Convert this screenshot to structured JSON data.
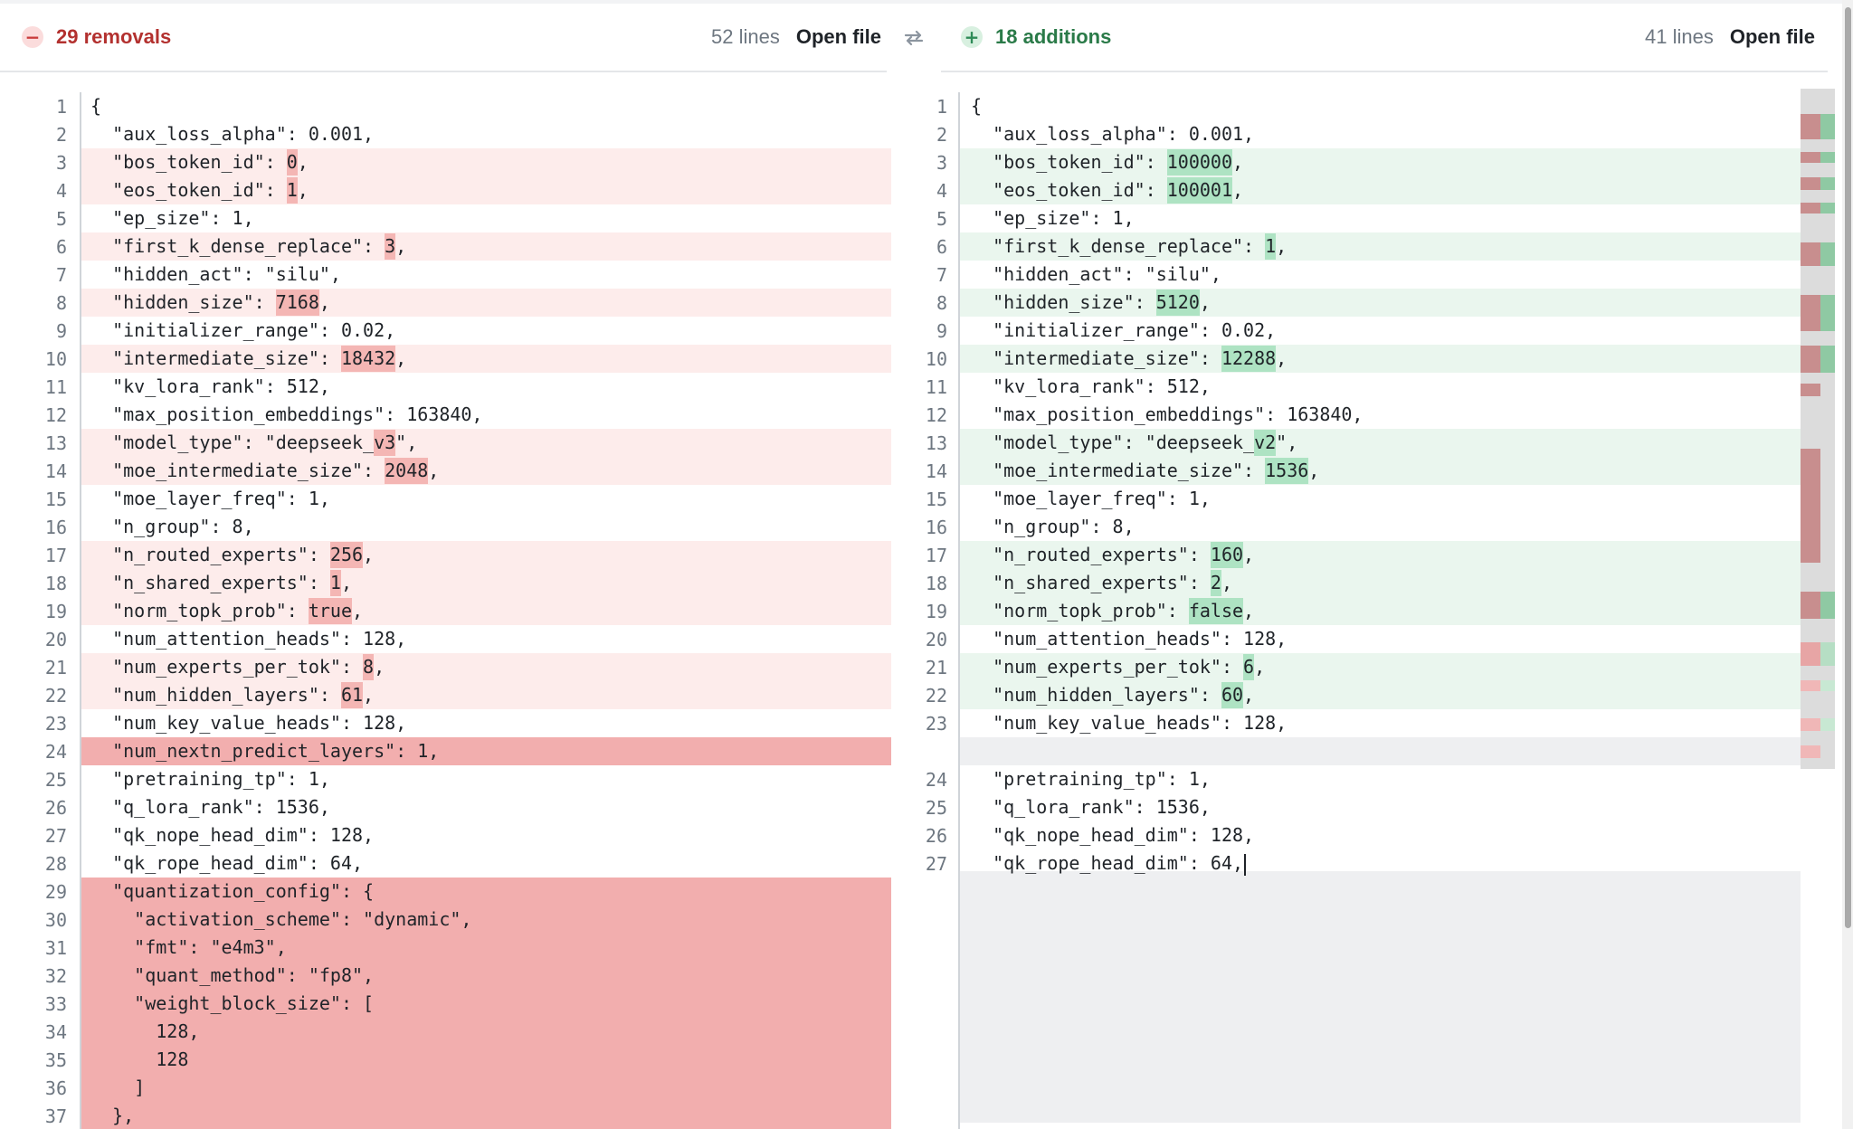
{
  "left_header": {
    "badge_icon": "minus-circle-icon",
    "label": "29 removals",
    "lines": "52 lines",
    "open_file": "Open file"
  },
  "right_header": {
    "badge_icon": "plus-circle-icon",
    "label": "18 additions",
    "lines": "41 lines",
    "open_file": "Open file"
  },
  "swap_icon": "swap-arrows-icon",
  "colors": {
    "removal": "#b3312f",
    "addition": "#2a7a48",
    "removed_line_bg": "#fdeceb",
    "removed_block_bg": "#f2aeae",
    "added_line_bg": "#eaf6ee",
    "added_token_bg": "#aee3c3"
  },
  "left_lines": [
    {
      "n": "1",
      "s": "normal",
      "p": [
        "{"
      ]
    },
    {
      "n": "2",
      "s": "normal",
      "p": [
        "  \"aux_loss_alpha\": 0.001,"
      ]
    },
    {
      "n": "3",
      "s": "mod",
      "p": [
        "  \"bos_token_id\": ",
        "0",
        ","
      ]
    },
    {
      "n": "4",
      "s": "mod",
      "p": [
        "  \"eos_token_id\": ",
        "1",
        ","
      ]
    },
    {
      "n": "5",
      "s": "normal",
      "p": [
        "  \"ep_size\": 1,"
      ]
    },
    {
      "n": "6",
      "s": "mod",
      "p": [
        "  \"first_k_dense_replace\": ",
        "3",
        ","
      ]
    },
    {
      "n": "7",
      "s": "normal",
      "p": [
        "  \"hidden_act\": \"silu\","
      ]
    },
    {
      "n": "8",
      "s": "mod",
      "p": [
        "  \"hidden_size\": ",
        "7168",
        ","
      ]
    },
    {
      "n": "9",
      "s": "normal",
      "p": [
        "  \"initializer_range\": 0.02,"
      ]
    },
    {
      "n": "10",
      "s": "mod",
      "p": [
        "  \"intermediate_size\": ",
        "18432",
        ","
      ]
    },
    {
      "n": "11",
      "s": "normal",
      "p": [
        "  \"kv_lora_rank\": 512,"
      ]
    },
    {
      "n": "12",
      "s": "normal",
      "p": [
        "  \"max_position_embeddings\": 163840,"
      ]
    },
    {
      "n": "13",
      "s": "mod",
      "p": [
        "  \"model_type\": \"deepseek_",
        "v3",
        "\","
      ]
    },
    {
      "n": "14",
      "s": "mod",
      "p": [
        "  \"moe_intermediate_size\": ",
        "2048",
        ","
      ]
    },
    {
      "n": "15",
      "s": "normal",
      "p": [
        "  \"moe_layer_freq\": 1,"
      ]
    },
    {
      "n": "16",
      "s": "normal",
      "p": [
        "  \"n_group\": 8,"
      ]
    },
    {
      "n": "17",
      "s": "mod",
      "p": [
        "  \"n_routed_experts\": ",
        "256",
        ","
      ]
    },
    {
      "n": "18",
      "s": "mod",
      "p": [
        "  \"n_shared_experts\": ",
        "1",
        ","
      ]
    },
    {
      "n": "19",
      "s": "mod",
      "p": [
        "  \"norm_topk_prob\": ",
        "true",
        ","
      ]
    },
    {
      "n": "20",
      "s": "normal",
      "p": [
        "  \"num_attention_heads\": 128,"
      ]
    },
    {
      "n": "21",
      "s": "mod",
      "p": [
        "  \"num_experts_per_tok\": ",
        "8",
        ","
      ]
    },
    {
      "n": "22",
      "s": "mod",
      "p": [
        "  \"num_hidden_layers\": ",
        "61",
        ","
      ]
    },
    {
      "n": "23",
      "s": "normal",
      "p": [
        "  \"num_key_value_heads\": 128,"
      ]
    },
    {
      "n": "24",
      "s": "del",
      "p": [
        "  \"num_nextn_predict_layers\": 1,"
      ]
    },
    {
      "n": "25",
      "s": "normal",
      "p": [
        "  \"pretraining_tp\": 1,"
      ]
    },
    {
      "n": "26",
      "s": "normal",
      "p": [
        "  \"q_lora_rank\": 1536,"
      ]
    },
    {
      "n": "27",
      "s": "normal",
      "p": [
        "  \"qk_nope_head_dim\": 128,"
      ]
    },
    {
      "n": "28",
      "s": "normal",
      "p": [
        "  \"qk_rope_head_dim\": 64,"
      ]
    },
    {
      "n": "29",
      "s": "del",
      "p": [
        "  \"quantization_config\": {"
      ]
    },
    {
      "n": "30",
      "s": "del",
      "p": [
        "    \"activation_scheme\": \"dynamic\","
      ]
    },
    {
      "n": "31",
      "s": "del",
      "p": [
        "    \"fmt\": \"e4m3\","
      ]
    },
    {
      "n": "32",
      "s": "del",
      "p": [
        "    \"quant_method\": \"fp8\","
      ]
    },
    {
      "n": "33",
      "s": "del",
      "p": [
        "    \"weight_block_size\": ["
      ]
    },
    {
      "n": "34",
      "s": "del",
      "p": [
        "      128,"
      ]
    },
    {
      "n": "35",
      "s": "del",
      "p": [
        "      128"
      ]
    },
    {
      "n": "36",
      "s": "del",
      "p": [
        "    ]"
      ]
    },
    {
      "n": "37",
      "s": "del",
      "p": [
        "  },"
      ]
    }
  ],
  "right_lines": [
    {
      "n": "1",
      "s": "normal",
      "p": [
        "{"
      ]
    },
    {
      "n": "2",
      "s": "normal",
      "p": [
        "  \"aux_loss_alpha\": 0.001,"
      ]
    },
    {
      "n": "3",
      "s": "mod",
      "p": [
        "  \"bos_token_id\": ",
        "100000",
        ","
      ]
    },
    {
      "n": "4",
      "s": "mod",
      "p": [
        "  \"eos_token_id\": ",
        "100001",
        ","
      ]
    },
    {
      "n": "5",
      "s": "normal",
      "p": [
        "  \"ep_size\": 1,"
      ]
    },
    {
      "n": "6",
      "s": "mod",
      "p": [
        "  \"first_k_dense_replace\": ",
        "1",
        ","
      ]
    },
    {
      "n": "7",
      "s": "normal",
      "p": [
        "  \"hidden_act\": \"silu\","
      ]
    },
    {
      "n": "8",
      "s": "mod",
      "p": [
        "  \"hidden_size\": ",
        "5120",
        ","
      ]
    },
    {
      "n": "9",
      "s": "normal",
      "p": [
        "  \"initializer_range\": 0.02,"
      ]
    },
    {
      "n": "10",
      "s": "mod",
      "p": [
        "  \"intermediate_size\": ",
        "12288",
        ","
      ]
    },
    {
      "n": "11",
      "s": "normal",
      "p": [
        "  \"kv_lora_rank\": 512,"
      ]
    },
    {
      "n": "12",
      "s": "normal",
      "p": [
        "  \"max_position_embeddings\": 163840,"
      ]
    },
    {
      "n": "13",
      "s": "mod",
      "p": [
        "  \"model_type\": \"deepseek_",
        "v2",
        "\","
      ]
    },
    {
      "n": "14",
      "s": "mod",
      "p": [
        "  \"moe_intermediate_size\": ",
        "1536",
        ","
      ]
    },
    {
      "n": "15",
      "s": "normal",
      "p": [
        "  \"moe_layer_freq\": 1,"
      ]
    },
    {
      "n": "16",
      "s": "normal",
      "p": [
        "  \"n_group\": 8,"
      ]
    },
    {
      "n": "17",
      "s": "mod",
      "p": [
        "  \"n_routed_experts\": ",
        "160",
        ","
      ]
    },
    {
      "n": "18",
      "s": "mod",
      "p": [
        "  \"n_shared_experts\": ",
        "2",
        ","
      ]
    },
    {
      "n": "19",
      "s": "mod",
      "p": [
        "  \"norm_topk_prob\": ",
        "false",
        ","
      ]
    },
    {
      "n": "20",
      "s": "normal",
      "p": [
        "  \"num_attention_heads\": 128,"
      ]
    },
    {
      "n": "21",
      "s": "mod",
      "p": [
        "  \"num_experts_per_tok\": ",
        "6",
        ","
      ]
    },
    {
      "n": "22",
      "s": "mod",
      "p": [
        "  \"num_hidden_layers\": ",
        "60",
        ","
      ]
    },
    {
      "n": "23",
      "s": "normal",
      "p": [
        "  \"num_key_value_heads\": 128,"
      ]
    },
    {
      "n": "",
      "s": "blank",
      "p": [
        ""
      ]
    },
    {
      "n": "24",
      "s": "normal",
      "p": [
        "  \"pretraining_tp\": 1,"
      ]
    },
    {
      "n": "25",
      "s": "normal",
      "p": [
        "  \"q_lora_rank\": 1536,"
      ]
    },
    {
      "n": "26",
      "s": "normal",
      "p": [
        "  \"qk_nope_head_dim\": 128,"
      ]
    },
    {
      "n": "27",
      "s": "normal",
      "p": [
        "  \"qk_rope_head_dim\": 64,"
      ],
      "caret": true
    }
  ]
}
